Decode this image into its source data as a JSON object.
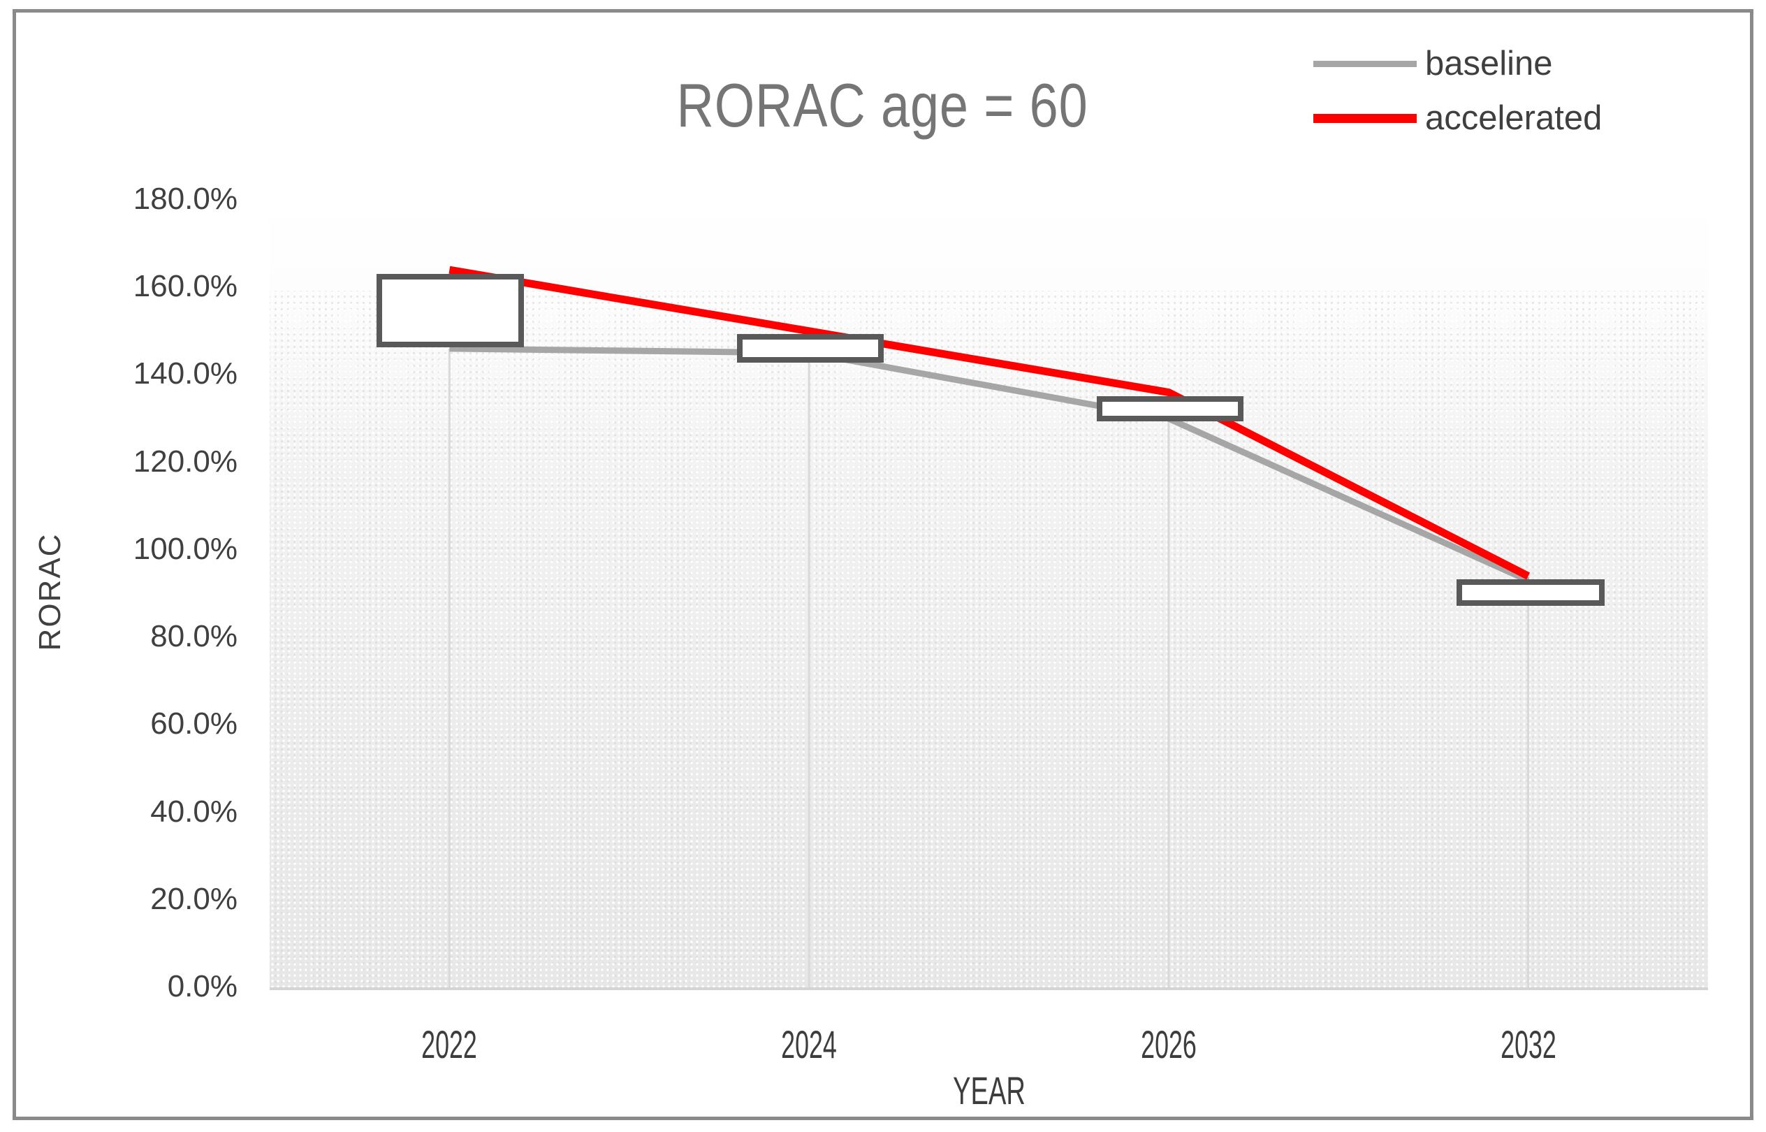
{
  "title": "RORAC age = 60",
  "legend": {
    "position": "top-right",
    "items": [
      {
        "label": "baseline",
        "color": "#a6a6a6"
      },
      {
        "label": "accelerated",
        "color": "#ff0000"
      }
    ]
  },
  "axes": {
    "x_title": "YEAR",
    "y_title": "RORAC"
  },
  "chart_data": {
    "type": "line",
    "title": "RORAC age = 60",
    "categories": [
      "2022",
      "2024",
      "2026",
      "2032"
    ],
    "series": [
      {
        "name": "baseline",
        "color": "#a6a6a6",
        "values": [
          146.0,
          145.0,
          130.0,
          93.0
        ]
      },
      {
        "name": "accelerated",
        "color": "#ff0000",
        "values": [
          164.0,
          150.0,
          136.0,
          94.0
        ]
      }
    ],
    "value_unit": "%",
    "xlabel": "YEAR",
    "ylabel": "RORAC",
    "ylim": [
      0,
      180
    ],
    "y_ticks": [
      "0.0%",
      "20.0%",
      "40.0%",
      "60.0%",
      "80.0%",
      "100.0%",
      "120.0%",
      "140.0%",
      "160.0%",
      "180.0%"
    ],
    "horizontal_gridlines": false,
    "drop_lines": true,
    "legend_position": "top-right",
    "data_labels": "empty white boxes with dark gray borders at each category (label text blank)"
  }
}
